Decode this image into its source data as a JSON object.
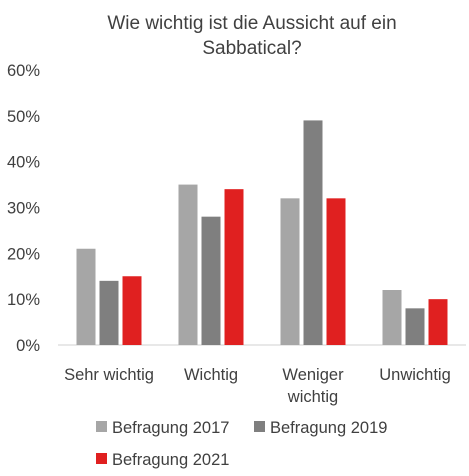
{
  "chart_data": {
    "type": "bar",
    "title_lines": [
      "Wie wichtig ist die Aussicht auf ein",
      "Sabbatical?"
    ],
    "categories": [
      [
        "Sehr wichtig"
      ],
      [
        "Wichtig"
      ],
      [
        "Weniger",
        "wichtig"
      ],
      [
        "Unwichtig"
      ]
    ],
    "series": [
      {
        "name": "Befragung 2017",
        "color": "#a6a6a6",
        "values": [
          21,
          35,
          32,
          12
        ]
      },
      {
        "name": "Befragung 2019",
        "color": "#7f7f7f",
        "values": [
          14,
          28,
          49,
          8
        ]
      },
      {
        "name": "Befragung 2021",
        "color": "#e02020",
        "values": [
          15,
          34,
          32,
          10
        ]
      }
    ],
    "ylim": [
      0,
      60
    ],
    "yticks": [
      0,
      10,
      20,
      30,
      40,
      50,
      60
    ],
    "ytick_labels": [
      "0%",
      "10%",
      "20%",
      "30%",
      "40%",
      "50%",
      "60%"
    ],
    "grid": false,
    "legend_position": "bottom"
  }
}
